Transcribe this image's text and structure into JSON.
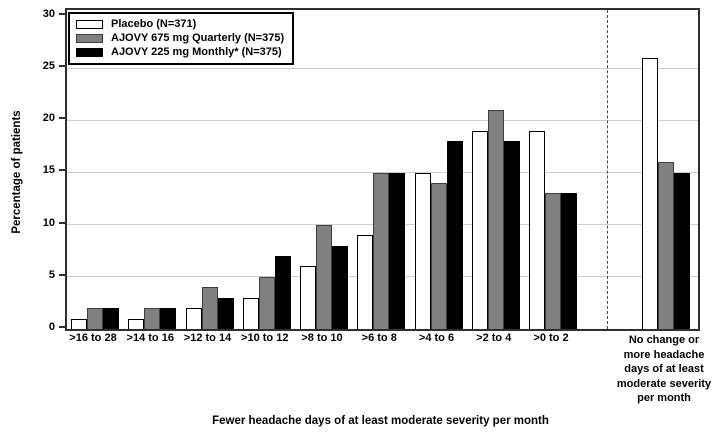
{
  "chart_data": {
    "type": "bar",
    "title": "",
    "xlabel": "Fewer headache days of at least moderate severity per month",
    "ylabel": "Percentage of patients",
    "ylim": [
      0,
      30
    ],
    "yticks": [
      0,
      5,
      10,
      15,
      20,
      25,
      30
    ],
    "gridlines_at": [
      5,
      10,
      15,
      20,
      25
    ],
    "grid": "horizontal",
    "legend_position": "top-left-inside",
    "categories": [
      ">16 to 28",
      ">14 to 16",
      ">12 to 14",
      ">10 to 12",
      ">8 to 10",
      ">6 to 8",
      ">4 to 6",
      ">2 to 4",
      ">0 to 2",
      "No change or\nmore headache\ndays of at least\nmoderate severity\nper month"
    ],
    "separator_after_category_index": 8,
    "series": [
      {
        "name": "Placebo (N=371)",
        "fill": "#ffffff",
        "border": "#000000",
        "values": [
          1,
          1,
          2,
          3,
          6,
          9,
          15,
          19,
          19,
          26
        ]
      },
      {
        "name": "AJOVY 675 mg Quarterly (N=375)",
        "fill": "#808080",
        "border": "#3d3d3d",
        "values": [
          2,
          2,
          4,
          5,
          10,
          15,
          14,
          21,
          13,
          16
        ]
      },
      {
        "name": "AJOVY 225 mg Monthly* (N=375)",
        "fill": "#000000",
        "border": "#000000",
        "values": [
          2,
          2,
          3,
          7,
          8,
          15,
          18,
          18,
          13,
          15
        ]
      }
    ]
  },
  "colors": {
    "gridline": "#cfcfcf",
    "frame": "#2f2f2f",
    "separator_line": "#4a4a4a",
    "background": "#ffffff"
  }
}
